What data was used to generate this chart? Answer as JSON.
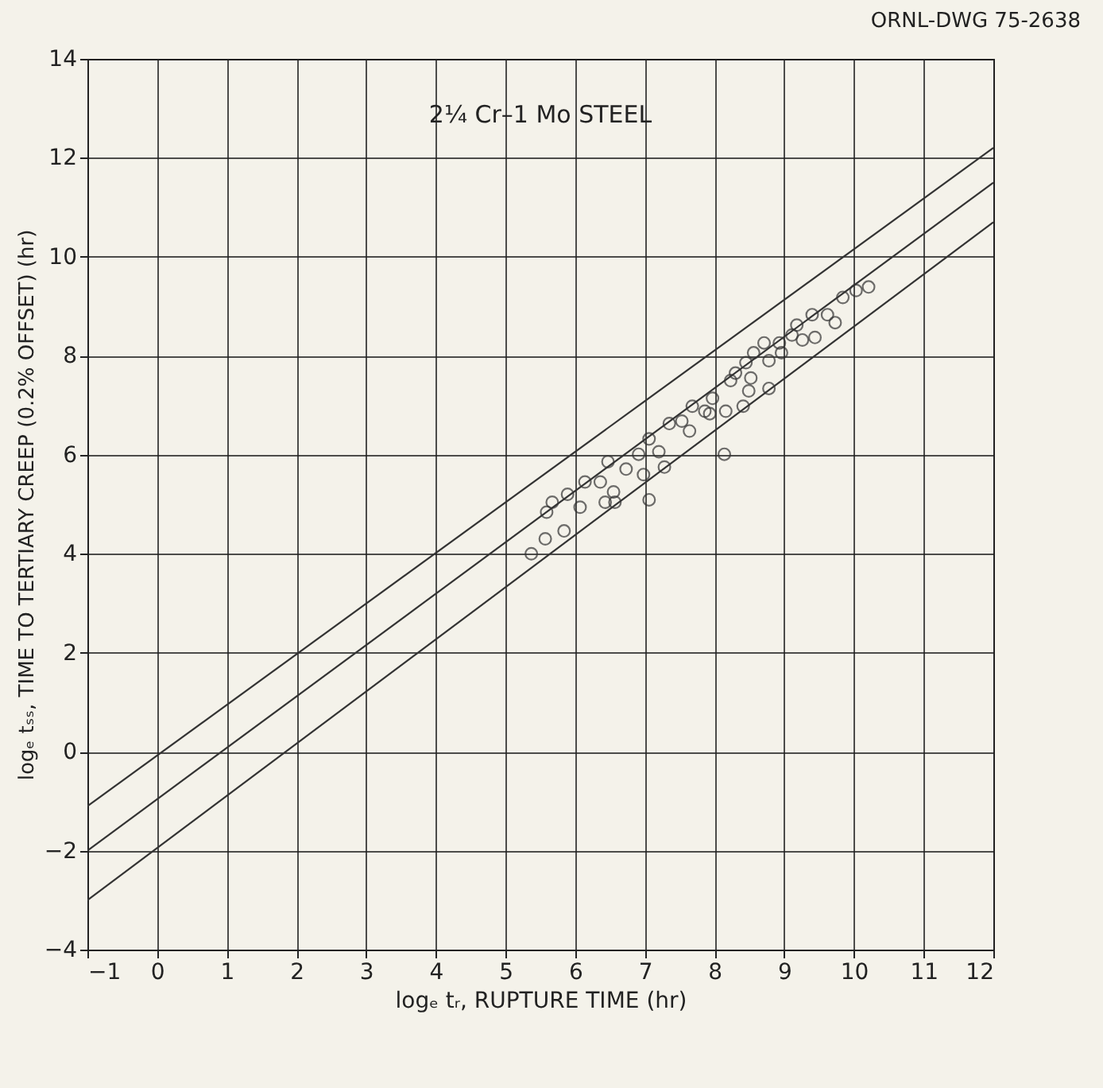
{
  "chart_data": {
    "type": "scatter",
    "title": "2¼ Cr–1 Mo STEEL",
    "xlabel": "logₑ tᵣ, RUPTURE TIME (hr)",
    "ylabel": "logₑ tₛₛ, TIME TO TERTIARY CREEP (0.2% OFFSET) (hr)",
    "annotations": [
      "ORNL-DWG 75-2638"
    ],
    "xlim": [
      -1,
      12
    ],
    "xticks": [
      -1,
      0,
      1,
      2,
      3,
      4,
      5,
      6,
      7,
      8,
      9,
      10,
      11,
      12
    ],
    "ylim": [
      -4,
      14
    ],
    "yticks": [
      -4,
      -2,
      0,
      2,
      4,
      6,
      8,
      10,
      12,
      14
    ],
    "grid": true,
    "series": [
      {
        "marker": "circle",
        "color": "#333333",
        "x": [
          5.37,
          5.57,
          5.84,
          5.59,
          5.67,
          5.89,
          6.14,
          6.36,
          6.55,
          6.57,
          7.06,
          6.47,
          6.73,
          6.98,
          6.91,
          7.06,
          7.2,
          7.35,
          7.53,
          7.68,
          7.64,
          7.86,
          7.97,
          8.16,
          8.14,
          8.41,
          8.23,
          8.3,
          8.49,
          8.52,
          8.45,
          8.56,
          8.78,
          8.78,
          8.96,
          8.93,
          9.11,
          9.26,
          9.44,
          9.4,
          9.62,
          9.73,
          9.84,
          10.03,
          10.21,
          6.07,
          6.43,
          7.28,
          7.93,
          8.71,
          9.18
        ],
        "values": [
          4.0,
          4.3,
          4.46,
          4.84,
          5.04,
          5.2,
          5.45,
          5.45,
          5.25,
          5.04,
          5.09,
          5.86,
          5.71,
          5.6,
          6.01,
          6.32,
          6.06,
          6.63,
          6.68,
          6.98,
          6.48,
          6.88,
          7.14,
          6.88,
          6.01,
          6.98,
          7.5,
          7.65,
          7.29,
          7.55,
          7.86,
          8.06,
          7.34,
          7.9,
          8.06,
          8.26,
          8.42,
          8.32,
          8.37,
          8.83,
          8.83,
          8.67,
          9.18,
          9.32,
          9.39,
          4.94,
          5.04,
          5.75,
          6.83,
          8.26,
          8.62
        ]
      },
      {
        "type": "line",
        "color": "#333333",
        "x": [
          -1,
          12
        ],
        "values": [
          -1.1,
          12.2
        ]
      },
      {
        "type": "line",
        "color": "#333333",
        "x": [
          -1,
          12
        ],
        "values": [
          -2,
          11.5
        ]
      },
      {
        "type": "line",
        "color": "#333333",
        "x": [
          -1,
          12
        ],
        "values": [
          -3,
          10.7
        ]
      }
    ]
  }
}
